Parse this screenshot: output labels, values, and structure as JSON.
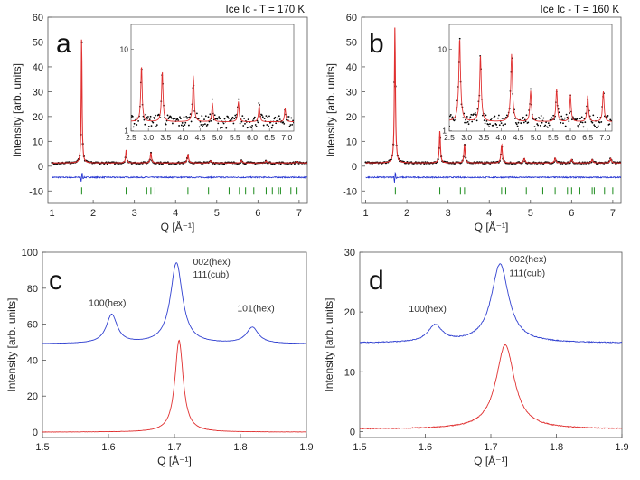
{
  "chart_data": [
    {
      "type": "line",
      "panel_label": "a",
      "title": "Ice Ic - T = 170 K",
      "xlabel": "Q [Å⁻¹]",
      "ylabel": "Intensity [arb. units]",
      "xlim": [
        0.9,
        7.2
      ],
      "ylim": [
        -15,
        60
      ],
      "xticks": [
        1,
        2,
        3,
        4,
        5,
        6,
        7
      ],
      "yticks": [
        -10,
        0,
        10,
        20,
        30,
        40,
        50,
        60
      ],
      "series": [
        {
          "role": "observed",
          "color": "#000000",
          "baseline": 1.3,
          "peaks": [
            [
              1.72,
              52,
              0.012
            ],
            [
              2.8,
              5.3,
              0.015
            ],
            [
              3.4,
              4.2,
              0.017
            ],
            [
              4.3,
              3.5,
              0.018
            ],
            [
              4.85,
              0.9,
              0.02
            ],
            [
              5.6,
              1.0,
              0.02
            ],
            [
              6.2,
              0.8,
              0.02
            ],
            [
              6.95,
              0.6,
              0.02
            ]
          ]
        },
        {
          "role": "calculated",
          "color": "#e03030"
        },
        {
          "role": "difference",
          "color": "#2030d0",
          "offset": -4.5
        },
        {
          "role": "reflections",
          "color": "#1a8a1a",
          "offset": -10
        }
      ],
      "reflection_positions": [
        1.72,
        2.8,
        3.3,
        3.4,
        3.5,
        4.3,
        4.8,
        5.3,
        5.55,
        5.7,
        5.9,
        6.2,
        6.35,
        6.5,
        6.55,
        6.8,
        6.95
      ],
      "inset": {
        "scale": "log",
        "xlim": [
          2.5,
          7.2
        ],
        "ylim": [
          1,
          20
        ],
        "xticks": [
          2.5,
          3.0,
          3.5,
          4.0,
          4.5,
          5.0,
          5.5,
          6.0,
          6.5,
          7.0
        ],
        "yticks": [
          1,
          10
        ]
      }
    },
    {
      "type": "line",
      "panel_label": "b",
      "title": "Ice Ic - T = 160 K",
      "xlabel": "Q [Å⁻¹]",
      "ylabel": "Intensity [arb. units]",
      "xlim": [
        0.9,
        7.2
      ],
      "ylim": [
        -15,
        60
      ],
      "xticks": [
        1,
        2,
        3,
        4,
        5,
        6,
        7
      ],
      "yticks": [
        -10,
        0,
        10,
        20,
        30,
        40,
        50,
        60
      ],
      "series": [
        {
          "role": "observed",
          "color": "#000000",
          "baseline": 1.3,
          "peaks": [
            [
              1.71,
              55,
              0.015
            ],
            [
              2.8,
              13,
              0.016
            ],
            [
              3.4,
              7.5,
              0.017
            ],
            [
              4.3,
              7.5,
              0.018
            ],
            [
              4.85,
              1.8,
              0.02
            ],
            [
              5.6,
              2.0,
              0.02
            ],
            [
              6.0,
              1.5,
              0.02
            ],
            [
              6.5,
              1.4,
              0.02
            ],
            [
              6.95,
              1.8,
              0.02
            ]
          ]
        },
        {
          "role": "calculated",
          "color": "#e03030"
        },
        {
          "role": "difference",
          "color": "#2030d0",
          "offset": -4.5
        },
        {
          "role": "reflections",
          "color": "#1a8a1a",
          "offset": -10
        }
      ],
      "reflection_positions": [
        1.72,
        2.8,
        3.3,
        3.4,
        4.3,
        4.4,
        4.9,
        5.3,
        5.6,
        5.9,
        6.0,
        6.2,
        6.5,
        6.55,
        6.8,
        7.0
      ],
      "inset": {
        "scale": "log",
        "xlim": [
          2.5,
          7.2
        ],
        "ylim": [
          1,
          20
        ],
        "xticks": [
          2.5,
          3.0,
          3.5,
          4.0,
          4.5,
          5.0,
          5.5,
          6.0,
          6.5,
          7.0
        ],
        "yticks": [
          1,
          10
        ]
      }
    },
    {
      "type": "line",
      "panel_label": "c",
      "xlabel": "Q [Å⁻¹]",
      "ylabel": "Intensity [arb. units]",
      "xlim": [
        1.5,
        1.9
      ],
      "ylim": [
        -3,
        100
      ],
      "xticks": [
        1.5,
        1.6,
        1.7,
        1.8,
        1.9
      ],
      "yticks": [
        0,
        20,
        40,
        60,
        80,
        100
      ],
      "series": [
        {
          "color": "#3040d0",
          "baseline": 49,
          "peaks": [
            [
              1.605,
              16,
              0.01
            ],
            [
              1.703,
              45,
              0.011
            ],
            [
              1.818,
              9,
              0.011
            ]
          ]
        },
        {
          "color": "#e03030",
          "baseline": 0,
          "peaks": [
            [
              1.707,
              51,
              0.0075
            ]
          ]
        }
      ],
      "annotations": [
        {
          "text": "100(hex)",
          "x": 1.57,
          "y": 70
        },
        {
          "text": "002(hex)",
          "x": 1.728,
          "y": 93
        },
        {
          "text": "111(cub)",
          "x": 1.728,
          "y": 86
        },
        {
          "text": "101(hex)",
          "x": 1.795,
          "y": 67
        }
      ]
    },
    {
      "type": "line",
      "panel_label": "d",
      "xlabel": "Q [Å⁻¹]",
      "ylabel": "Intensity [arb. units]",
      "xlim": [
        1.5,
        1.9
      ],
      "ylim": [
        -1,
        30
      ],
      "xticks": [
        1.5,
        1.6,
        1.7,
        1.8,
        1.9
      ],
      "yticks": [
        0,
        10,
        20,
        30
      ],
      "series": [
        {
          "color": "#3040d0",
          "baseline": 14.8,
          "peaks": [
            [
              1.615,
              2.8,
              0.013
            ],
            [
              1.714,
              13.2,
              0.016
            ]
          ]
        },
        {
          "color": "#e03030",
          "baseline": 0.4,
          "peaks": [
            [
              1.722,
              14.1,
              0.017
            ]
          ]
        }
      ],
      "annotations": [
        {
          "text": "100(hex)",
          "x": 1.575,
          "y": 20
        },
        {
          "text": "002(hex)",
          "x": 1.728,
          "y": 28.3
        },
        {
          "text": "111(cub)",
          "x": 1.728,
          "y": 26
        }
      ]
    }
  ]
}
